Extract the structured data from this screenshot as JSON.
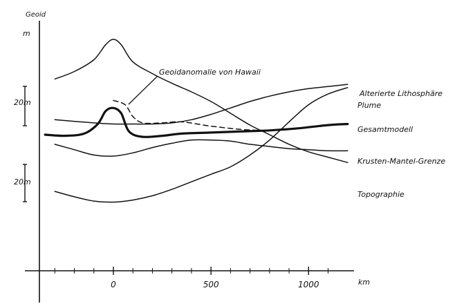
{
  "chart_data": {
    "type": "line",
    "ylabel": "Geoid",
    "y_unit_label": "m",
    "y_scale_labels": [
      "20m",
      "20m"
    ],
    "x_unit_label": "km",
    "x_ticks": [
      0,
      500,
      1000
    ],
    "x_tick_labels": [
      "0",
      "500",
      "1000"
    ],
    "xlim": [
      -350,
      1200
    ],
    "grid": false,
    "legend": "inline-right",
    "annotation": "Geoidanomalie von Hawaii",
    "series": [
      {
        "name": "Topographie",
        "x": [
          -300,
          -200,
          -100,
          -40,
          0,
          40,
          100,
          200,
          300,
          400,
          500,
          600,
          700,
          800,
          900,
          1000,
          1100,
          1200
        ],
        "values": [
          52,
          59,
          70,
          84,
          89,
          84,
          68,
          57,
          48,
          40,
          31,
          20,
          9,
          0,
          -9,
          -16,
          -21,
          -26
        ]
      },
      {
        "name": "Alterierte Lithosphäre",
        "x": [
          -300,
          -100,
          0,
          100,
          200,
          300,
          400,
          500,
          600,
          700,
          800,
          900,
          1000,
          1100,
          1200
        ],
        "values": [
          14,
          11,
          10,
          10,
          10,
          11,
          14,
          19,
          25,
          31,
          36,
          40,
          43,
          45,
          47
        ]
      },
      {
        "name": "Plume",
        "x": [
          -300,
          -200,
          -100,
          0,
          100,
          200,
          300,
          400,
          500,
          600,
          700,
          800,
          900,
          1000,
          1100,
          1200
        ],
        "values": [
          -53,
          -58,
          -62,
          -63,
          -61,
          -57,
          -51,
          -44,
          -37,
          -30,
          -19,
          -5,
          12,
          28,
          38,
          44
        ]
      },
      {
        "name": "Gesamtmodell",
        "x": [
          -350,
          -250,
          -150,
          -80,
          -40,
          0,
          40,
          80,
          150,
          250,
          350,
          500,
          650,
          800,
          950,
          1100,
          1200
        ],
        "values": [
          0,
          -1,
          1,
          10,
          22,
          25,
          20,
          3,
          -2,
          -1,
          1,
          2,
          3,
          4,
          6,
          9,
          10
        ]
      },
      {
        "name": "Krusten-Mantel-Grenze",
        "x": [
          -300,
          -200,
          -100,
          0,
          100,
          200,
          300,
          400,
          500,
          600,
          700,
          800,
          900,
          1000,
          1100,
          1200
        ],
        "values": [
          -9,
          -14,
          -19,
          -20,
          -17,
          -12,
          -8,
          -5,
          -5,
          -6,
          -9,
          -11,
          -13,
          -14,
          -15,
          -15
        ]
      },
      {
        "name": "Geoidanomalie von Hawaii",
        "dashed": true,
        "x": [
          0,
          60,
          100,
          150,
          250,
          350,
          500,
          650,
          750
        ],
        "values": [
          32,
          28,
          17,
          11,
          11,
          12,
          8,
          5,
          4
        ]
      }
    ]
  }
}
